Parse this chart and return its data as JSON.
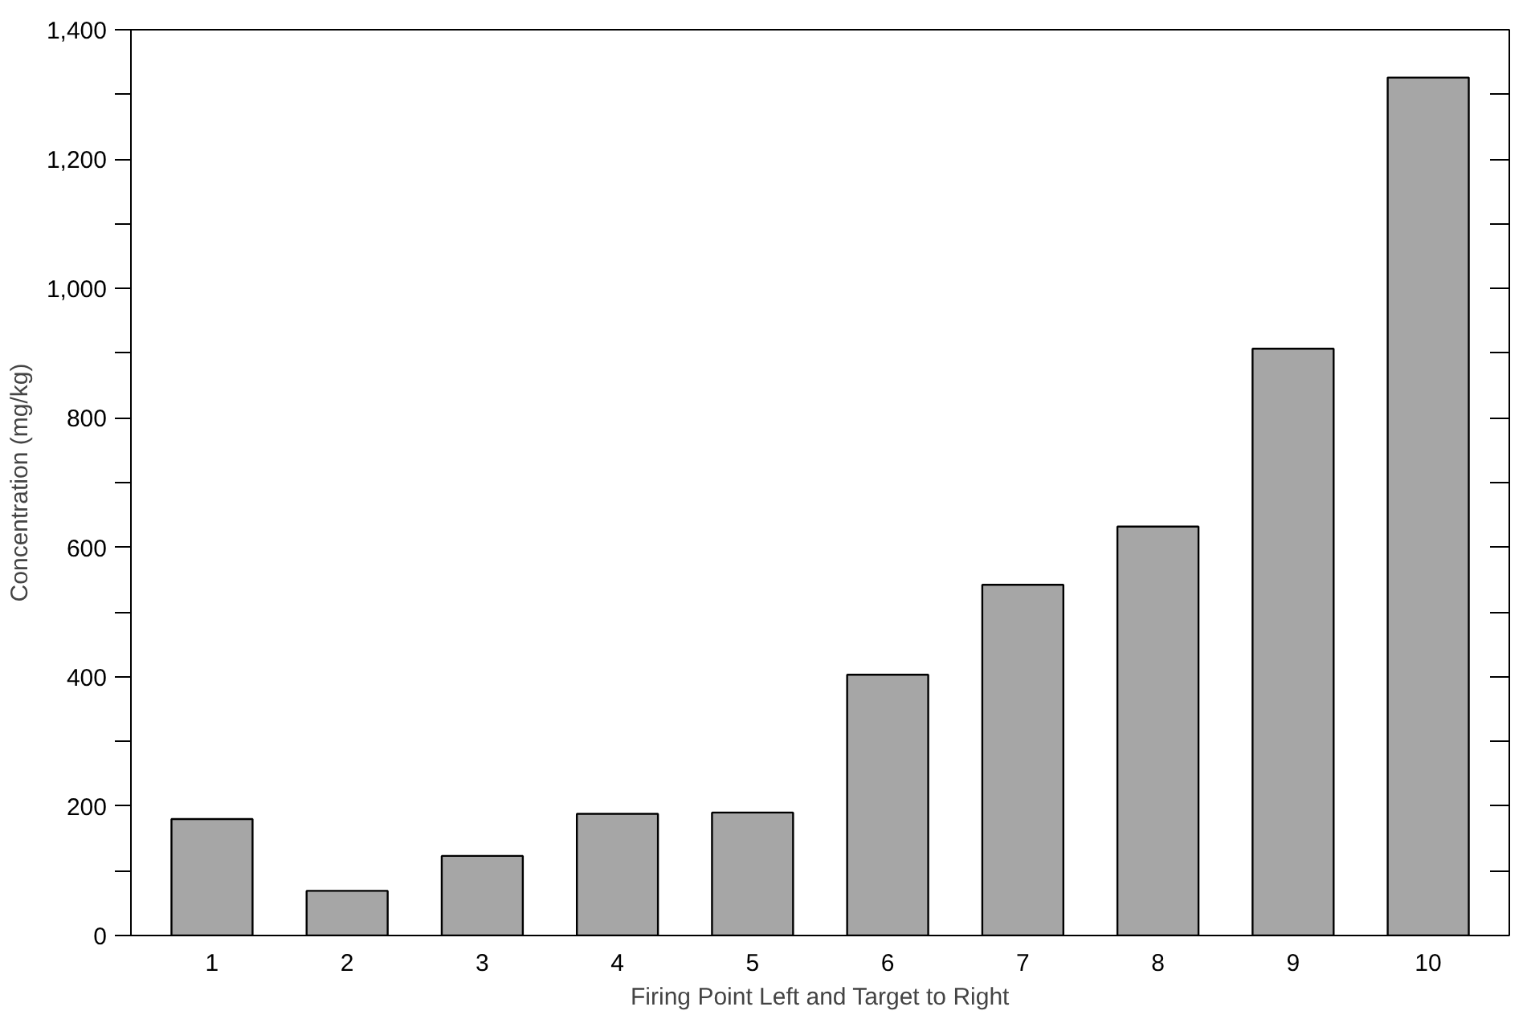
{
  "chart_data": {
    "type": "bar",
    "xlabel": "Firing Point Left and Target to Right",
    "ylabel": "Concentration (mg/kg)",
    "categories": [
      "1",
      "2",
      "3",
      "4",
      "5",
      "6",
      "7",
      "8",
      "9",
      "10"
    ],
    "values": [
      180,
      69,
      123,
      188,
      190,
      403,
      542,
      632,
      907,
      1326
    ],
    "color": "#a6a6a6",
    "ylim": [
      0,
      1400
    ],
    "yticks": [
      0,
      {
        "value": 100,
        "label": null
      },
      {
        "value": 200,
        "label": "200"
      },
      {
        "value": 300,
        "label": null
      },
      {
        "value": 400,
        "label": "400"
      },
      {
        "value": 500,
        "label": null
      },
      {
        "value": 600,
        "label": "600"
      },
      {
        "value": 700,
        "label": null
      },
      {
        "value": 800,
        "label": "800"
      },
      {
        "value": 900,
        "label": null
      },
      {
        "value": 1000,
        "label": "1,000"
      },
      {
        "value": 1100,
        "label": null
      },
      {
        "value": 1200,
        "label": "1,200"
      },
      {
        "value": 1300,
        "label": null
      },
      {
        "value": 1400,
        "label": "1,400"
      }
    ],
    "grid": false
  }
}
